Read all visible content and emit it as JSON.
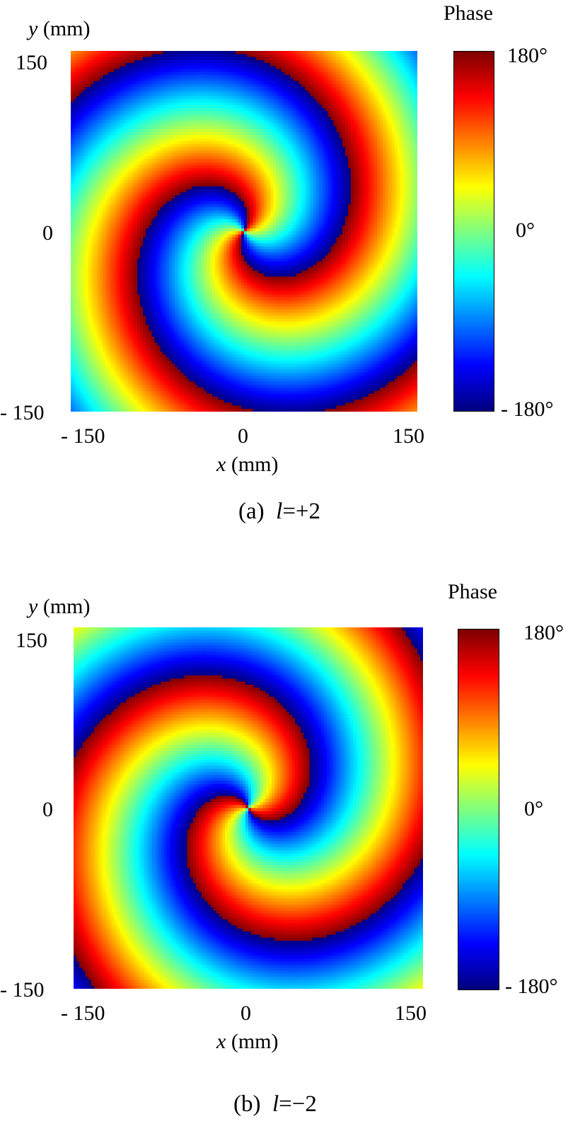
{
  "chart_data": [
    {
      "type": "heatmap",
      "panel_label": "(a)",
      "caption_var": "l",
      "caption_eq": "=+2",
      "topological_charge": 2,
      "quantity": "Phase",
      "xlabel_var": "x",
      "xlabel_unit": "(mm)",
      "ylabel_var": "y",
      "ylabel_unit": "(mm)",
      "xlim": [
        -150,
        150
      ],
      "ylim": [
        -150,
        150
      ],
      "x_ticks": [
        "- 150",
        "0",
        "150"
      ],
      "y_ticks": [
        "150",
        "0",
        "- 150"
      ],
      "colorbar": {
        "title": "Phase",
        "range": [
          -180,
          180
        ],
        "labels": [
          "180°",
          "0°",
          "- 180°"
        ],
        "colormap": "jet"
      },
      "grid": false
    },
    {
      "type": "heatmap",
      "panel_label": "(b)",
      "caption_var": "l",
      "caption_eq": "=−2",
      "topological_charge": -2,
      "quantity": "Phase",
      "xlabel_var": "x",
      "xlabel_unit": "(mm)",
      "ylabel_var": "y",
      "ylabel_unit": "(mm)",
      "xlim": [
        -150,
        150
      ],
      "ylim": [
        -150,
        150
      ],
      "x_ticks": [
        "- 150",
        "0",
        "150"
      ],
      "y_ticks": [
        "150",
        "0",
        "- 150"
      ],
      "colorbar": {
        "title": "Phase",
        "range": [
          -180,
          180
        ],
        "labels": [
          "180°",
          "0°",
          "- 180°"
        ],
        "colormap": "jet"
      },
      "grid": false
    }
  ]
}
